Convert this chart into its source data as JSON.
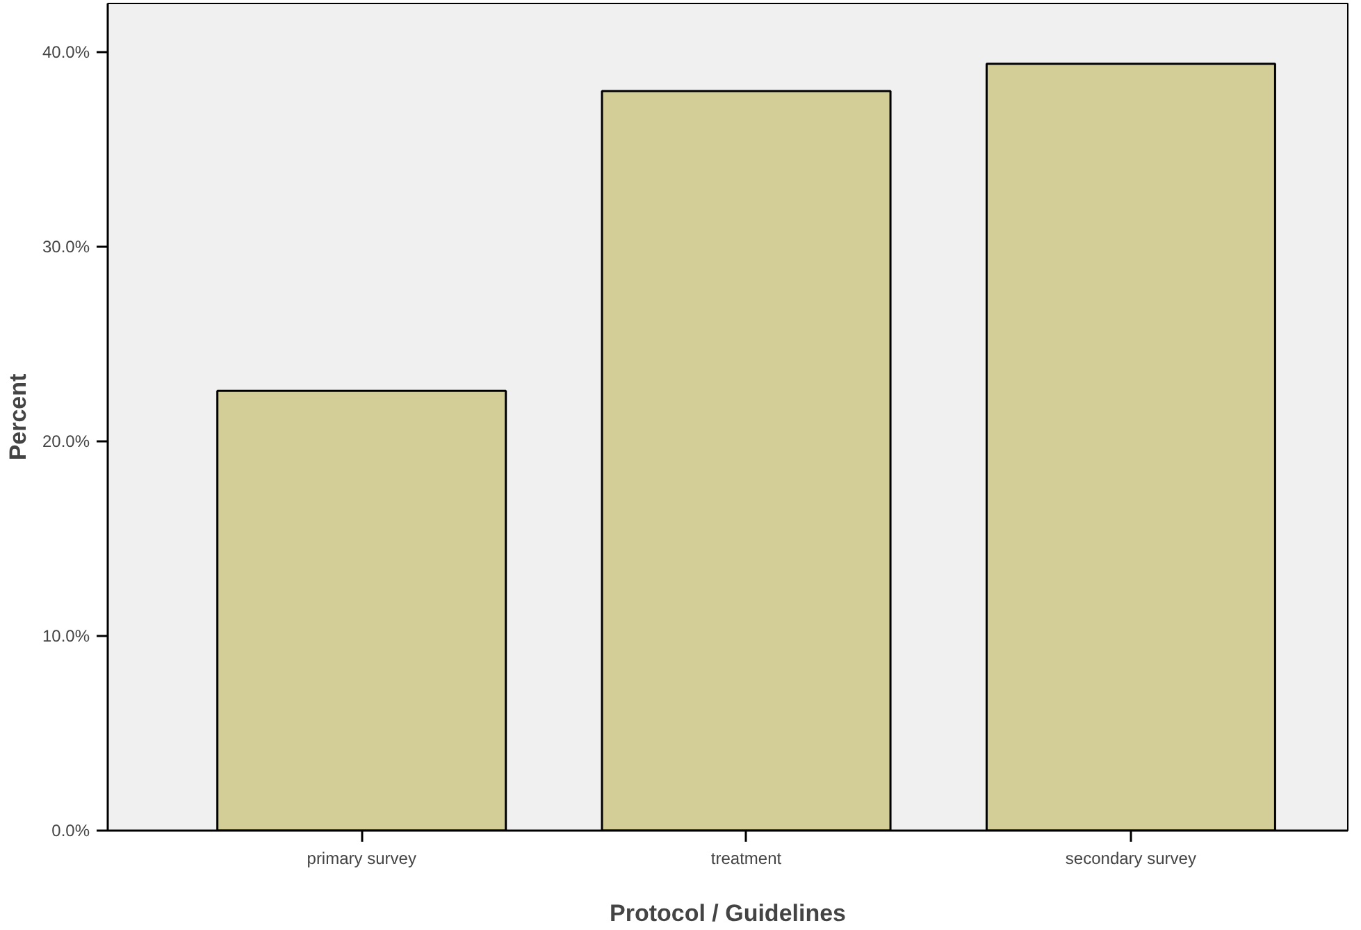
{
  "chart_data": {
    "type": "bar",
    "xlabel": "Protocol / Guidelines",
    "ylabel": "Percent",
    "categories": [
      "primary survey",
      "treatment",
      "secondary survey"
    ],
    "values": [
      22.6,
      38.0,
      39.4
    ],
    "color": "#d3ce97",
    "ylim": [
      0,
      42.5
    ],
    "yticks": [
      {
        "value": 0,
        "label": "0.0%"
      },
      {
        "value": 10,
        "label": "10.0%"
      },
      {
        "value": 20,
        "label": "20.0%"
      },
      {
        "value": 30,
        "label": "30.0%"
      },
      {
        "value": 40,
        "label": "40.0%"
      }
    ],
    "grid": false
  }
}
